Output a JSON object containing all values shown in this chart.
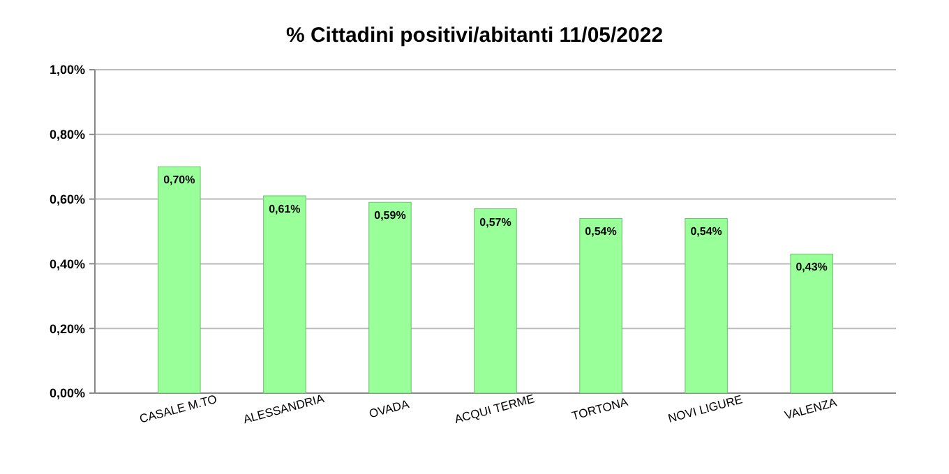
{
  "chart_data": {
    "type": "bar",
    "title": "% Cittadini positivi/abitanti 11/05/2022",
    "categories": [
      "CASALE M.TO",
      "ALESSANDRIA",
      "OVADA",
      "ACQUI TERME",
      "TORTONA",
      "NOVI LIGURE",
      "VALENZA"
    ],
    "values": [
      0.7,
      0.61,
      0.59,
      0.57,
      0.54,
      0.54,
      0.43
    ],
    "value_labels": [
      "0,70%",
      "0,61%",
      "0,59%",
      "0,57%",
      "0,54%",
      "0,54%",
      "0,43%"
    ],
    "color": "#99ff99",
    "ylim": [
      0,
      1.0
    ],
    "yticks": [
      {
        "value": 0,
        "label": "0,00%"
      },
      {
        "value": 0.2,
        "label": "0,20%"
      },
      {
        "value": 0.4,
        "label": "0,40%"
      },
      {
        "value": 0.6,
        "label": "0,60%"
      },
      {
        "value": 0.8,
        "label": "0,80%"
      },
      {
        "value": 1.0,
        "label": "1,00%"
      }
    ],
    "grid": "y"
  }
}
